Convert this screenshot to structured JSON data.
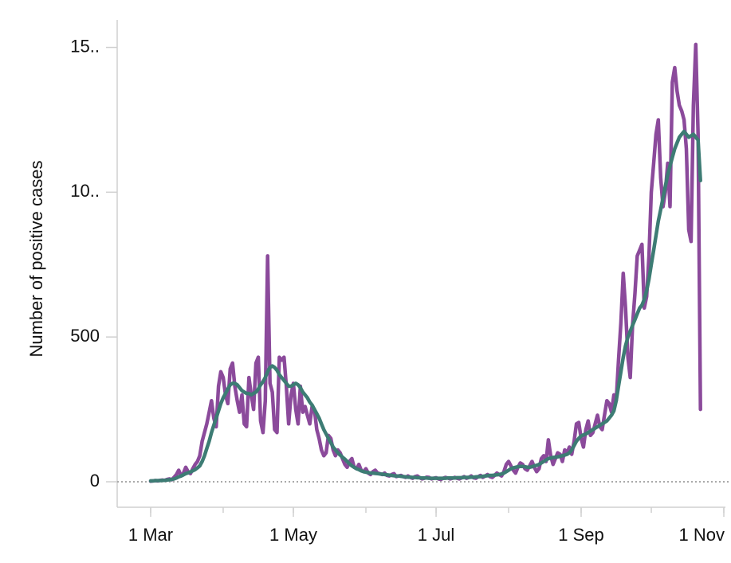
{
  "chart_data": {
    "type": "line",
    "y_label": "Number of positive cases",
    "categories": [
      "1 Mar",
      "2 Mar",
      "3 Mar",
      "4 Mar",
      "5 Mar",
      "6 Mar",
      "7 Mar",
      "8 Mar",
      "9 Mar",
      "10 Mar",
      "11 Mar",
      "12 Mar",
      "13 Mar",
      "14 Mar",
      "15 Mar",
      "16 Mar",
      "17 Mar",
      "18 Mar",
      "19 Mar",
      "20 Mar",
      "21 Mar",
      "22 Mar",
      "23 Mar",
      "24 Mar",
      "25 Mar",
      "26 Mar",
      "27 Mar",
      "28 Mar",
      "29 Mar",
      "30 Mar",
      "31 Mar",
      "1 Apr",
      "2 Apr",
      "3 Apr",
      "4 Apr",
      "5 Apr",
      "6 Apr",
      "7 Apr",
      "8 Apr",
      "9 Apr",
      "10 Apr",
      "11 Apr",
      "12 Apr",
      "13 Apr",
      "14 Apr",
      "15 Apr",
      "16 Apr",
      "17 Apr",
      "18 Apr",
      "19 Apr",
      "20 Apr",
      "21 Apr",
      "22 Apr",
      "23 Apr",
      "24 Apr",
      "25 Apr",
      "26 Apr",
      "27 Apr",
      "28 Apr",
      "29 Apr",
      "30 Apr",
      "1 May",
      "2 May",
      "3 May",
      "4 May",
      "5 May",
      "6 May",
      "7 May",
      "8 May",
      "9 May",
      "10 May",
      "11 May",
      "12 May",
      "13 May",
      "14 May",
      "15 May",
      "16 May",
      "17 May",
      "18 May",
      "19 May",
      "20 May",
      "21 May",
      "22 May",
      "23 May",
      "24 May",
      "25 May",
      "26 May",
      "27 May",
      "28 May",
      "29 May",
      "30 May",
      "31 May",
      "1 Jun",
      "2 Jun",
      "3 Jun",
      "4 Jun",
      "5 Jun",
      "6 Jun",
      "7 Jun",
      "8 Jun",
      "9 Jun",
      "10 Jun",
      "11 Jun",
      "12 Jun",
      "13 Jun",
      "14 Jun",
      "15 Jun",
      "16 Jun",
      "17 Jun",
      "18 Jun",
      "19 Jun",
      "20 Jun",
      "21 Jun",
      "22 Jun",
      "23 Jun",
      "24 Jun",
      "25 Jun",
      "26 Jun",
      "27 Jun",
      "28 Jun",
      "29 Jun",
      "30 Jun",
      "1 Jul",
      "2 Jul",
      "3 Jul",
      "4 Jul",
      "5 Jul",
      "6 Jul",
      "7 Jul",
      "8 Jul",
      "9 Jul",
      "10 Jul",
      "11 Jul",
      "12 Jul",
      "13 Jul",
      "14 Jul",
      "15 Jul",
      "16 Jul",
      "17 Jul",
      "18 Jul",
      "19 Jul",
      "20 Jul",
      "21 Jul",
      "22 Jul",
      "23 Jul",
      "24 Jul",
      "25 Jul",
      "26 Jul",
      "27 Jul",
      "28 Jul",
      "29 Jul",
      "30 Jul",
      "31 Jul",
      "1 Aug",
      "2 Aug",
      "3 Aug",
      "4 Aug",
      "5 Aug",
      "6 Aug",
      "7 Aug",
      "8 Aug",
      "9 Aug",
      "10 Aug",
      "11 Aug",
      "12 Aug",
      "13 Aug",
      "14 Aug",
      "15 Aug",
      "16 Aug",
      "17 Aug",
      "18 Aug",
      "19 Aug",
      "20 Aug",
      "21 Aug",
      "22 Aug",
      "23 Aug",
      "24 Aug",
      "25 Aug",
      "26 Aug",
      "27 Aug",
      "28 Aug",
      "29 Aug",
      "30 Aug",
      "31 Aug",
      "1 Sep",
      "2 Sep",
      "3 Sep",
      "4 Sep",
      "5 Sep",
      "6 Sep",
      "7 Sep",
      "8 Sep",
      "9 Sep",
      "10 Sep",
      "11 Sep",
      "12 Sep",
      "13 Sep",
      "14 Sep",
      "15 Sep",
      "16 Sep",
      "17 Sep",
      "18 Sep",
      "19 Sep",
      "20 Sep",
      "21 Sep",
      "22 Sep",
      "23 Sep",
      "24 Sep",
      "25 Sep",
      "26 Sep",
      "27 Sep",
      "28 Sep",
      "29 Sep",
      "30 Sep",
      "1 Oct",
      "2 Oct",
      "3 Oct",
      "4 Oct",
      "5 Oct",
      "6 Oct",
      "7 Oct",
      "8 Oct",
      "9 Oct",
      "10 Oct",
      "11 Oct",
      "12 Oct",
      "13 Oct",
      "14 Oct",
      "15 Oct",
      "16 Oct",
      "17 Oct",
      "18 Oct",
      "19 Oct",
      "20 Oct",
      "21 Oct",
      "22 Oct",
      "23 Oct",
      "24 Oct",
      "25 Oct",
      "26 Oct",
      "27 Oct",
      "28 Oct",
      "29 Oct",
      "30 Oct",
      "31 Oct",
      "1 Nov"
    ],
    "xticks": [
      "1 Mar",
      "1 May",
      "1 Jul",
      "1 Sep",
      "1 Nov"
    ],
    "series": [
      {
        "color": "#8b4a9b",
        "values": [
          2,
          3,
          4,
          3,
          5,
          6,
          5,
          8,
          10,
          7,
          15,
          25,
          40,
          20,
          30,
          50,
          35,
          28,
          45,
          60,
          70,
          90,
          140,
          170,
          200,
          240,
          280,
          220,
          190,
          330,
          380,
          360,
          300,
          270,
          390,
          410,
          330,
          280,
          240,
          300,
          200,
          190,
          360,
          300,
          250,
          410,
          430,
          210,
          170,
          280,
          780,
          340,
          310,
          180,
          170,
          430,
          420,
          430,
          330,
          200,
          300,
          340,
          250,
          200,
          330,
          240,
          260,
          230,
          200,
          260,
          250,
          180,
          150,
          110,
          90,
          100,
          160,
          150,
          110,
          90,
          110,
          100,
          80,
          60,
          50,
          70,
          80,
          50,
          45,
          60,
          40,
          35,
          45,
          30,
          25,
          35,
          40,
          30,
          28,
          25,
          30,
          22,
          20,
          25,
          28,
          18,
          20,
          22,
          18,
          15,
          20,
          15,
          12,
          18,
          20,
          14,
          10,
          12,
          16,
          15,
          10,
          12,
          14,
          10,
          8,
          12,
          15,
          13,
          10,
          12,
          15,
          12,
          10,
          14,
          18,
          12,
          15,
          20,
          14,
          12,
          18,
          22,
          15,
          20,
          25,
          18,
          15,
          22,
          30,
          25,
          20,
          35,
          60,
          70,
          55,
          40,
          30,
          50,
          65,
          60,
          45,
          40,
          55,
          70,
          50,
          35,
          45,
          80,
          90,
          70,
          145,
          90,
          60,
          80,
          100,
          95,
          70,
          110,
          100,
          120,
          95,
          140,
          200,
          205,
          150,
          120,
          180,
          210,
          160,
          170,
          200,
          230,
          190,
          180,
          230,
          280,
          270,
          240,
          300,
          280,
          420,
          550,
          720,
          600,
          430,
          360,
          540,
          650,
          780,
          800,
          820,
          600,
          640,
          780,
          1000,
          1100,
          1200,
          1250,
          1050,
          950,
          1000,
          1100,
          950,
          1380,
          1430,
          1350,
          1300,
          1280,
          1250,
          1150,
          870,
          830,
          1300,
          1510,
          1200,
          250,
          null,
          null,
          null,
          null,
          null,
          null,
          null,
          null,
          null,
          null
        ]
      },
      {
        "color": "#3d7c74",
        "values": [
          3,
          3,
          4,
          4,
          4,
          5,
          5,
          6,
          7,
          8,
          10,
          13,
          17,
          20,
          24,
          28,
          31,
          34,
          38,
          42,
          48,
          55,
          70,
          90,
          115,
          140,
          170,
          195,
          220,
          245,
          270,
          290,
          305,
          320,
          335,
          340,
          340,
          335,
          325,
          315,
          310,
          305,
          305,
          300,
          305,
          310,
          320,
          335,
          345,
          360,
          380,
          395,
          400,
          395,
          385,
          370,
          360,
          350,
          340,
          330,
          330,
          335,
          340,
          335,
          325,
          310,
          300,
          290,
          275,
          265,
          250,
          235,
          220,
          200,
          180,
          165,
          150,
          135,
          120,
          110,
          100,
          92,
          85,
          78,
          70,
          62,
          55,
          50,
          45,
          42,
          38,
          35,
          33,
          32,
          30,
          30,
          29,
          28,
          27,
          26,
          25,
          24,
          23,
          22,
          21,
          20,
          20,
          19,
          18,
          17,
          16,
          16,
          15,
          15,
          14,
          14,
          13,
          13,
          13,
          12,
          12,
          12,
          12,
          12,
          12,
          12,
          12,
          13,
          13,
          13,
          13,
          14,
          14,
          14,
          15,
          15,
          15,
          16,
          16,
          17,
          17,
          18,
          19,
          20,
          21,
          22,
          22,
          23,
          24,
          25,
          27,
          30,
          35,
          40,
          45,
          48,
          50,
          52,
          53,
          53,
          52,
          50,
          50,
          52,
          55,
          57,
          60,
          65,
          70,
          75,
          80,
          82,
          84,
          85,
          86,
          88,
          90,
          92,
          95,
          100,
          110,
          125,
          140,
          150,
          158,
          162,
          165,
          170,
          175,
          180,
          185,
          190,
          195,
          200,
          205,
          210,
          220,
          230,
          245,
          280,
          330,
          380,
          430,
          470,
          500,
          520,
          540,
          560,
          580,
          600,
          610,
          630,
          660,
          700,
          750,
          800,
          850,
          900,
          940,
          980,
          1020,
          1060,
          1090,
          1120,
          1150,
          1170,
          1190,
          1200,
          1210,
          1200,
          1190,
          1195,
          1200,
          1190,
          1180,
          1040,
          null,
          null,
          null,
          null,
          null,
          null,
          null,
          null,
          null,
          null
        ]
      }
    ],
    "ylim": [
      -88,
      1595
    ],
    "yticks": [
      0,
      500,
      {
        "value": 1000,
        "label": "10.."
      },
      {
        "value": 1500,
        "label": "15.."
      }
    ],
    "zero_line": true
  }
}
